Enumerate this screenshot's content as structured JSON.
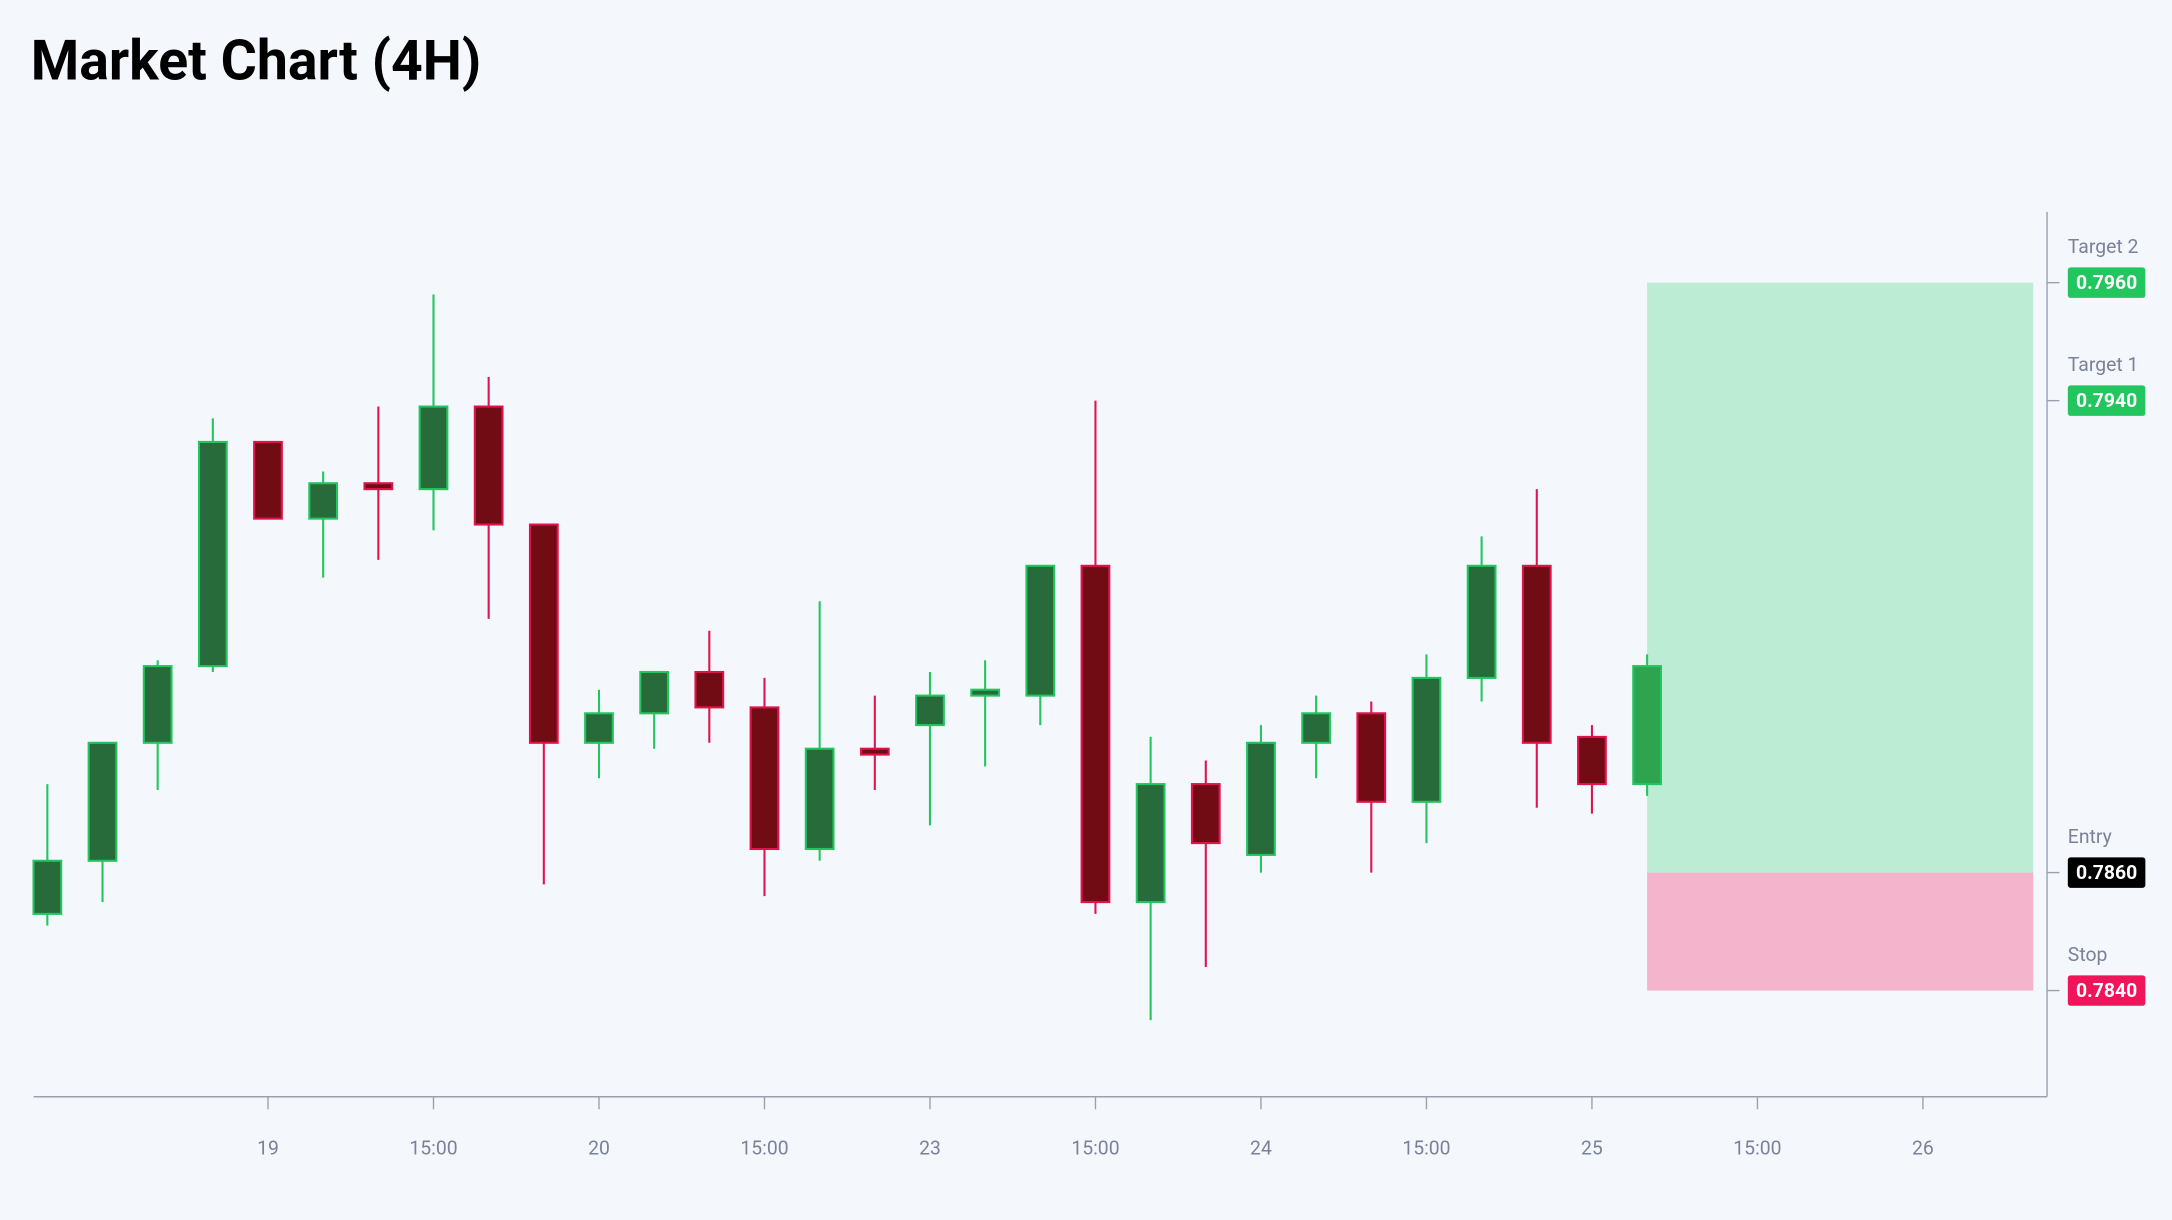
{
  "chart_data": {
    "type": "candlestick",
    "title": "Market Chart (4H)",
    "x": [
      0,
      1,
      2,
      3,
      4,
      5,
      6,
      7,
      8,
      9,
      10,
      11,
      12,
      13,
      14,
      15,
      16,
      17,
      18,
      19,
      20,
      21,
      22,
      23,
      24,
      25,
      26,
      27,
      28,
      29
    ],
    "open": [
      0.7853,
      0.7862,
      0.7882,
      0.7895,
      0.7933,
      0.792,
      0.7926,
      0.7925,
      0.7939,
      0.7919,
      0.7882,
      0.7887,
      0.7894,
      0.7888,
      0.7864,
      0.7881,
      0.7885,
      0.789,
      0.789,
      0.7912,
      0.7855,
      0.7875,
      0.7863,
      0.7882,
      0.7887,
      0.7872,
      0.7893,
      0.7912,
      0.7883,
      0.7875
    ],
    "high": [
      0.7875,
      0.7882,
      0.7896,
      0.7937,
      0.7933,
      0.7928,
      0.7939,
      0.7958,
      0.7944,
      0.7919,
      0.7891,
      0.7894,
      0.7901,
      0.7893,
      0.7906,
      0.789,
      0.7894,
      0.7896,
      0.7912,
      0.794,
      0.7883,
      0.7879,
      0.7885,
      0.789,
      0.7889,
      0.7897,
      0.7917,
      0.7925,
      0.7885,
      0.7897
    ],
    "low": [
      0.7851,
      0.7855,
      0.7874,
      0.7894,
      0.792,
      0.791,
      0.7913,
      0.7918,
      0.7903,
      0.7858,
      0.7876,
      0.7881,
      0.7882,
      0.7856,
      0.7862,
      0.7874,
      0.7868,
      0.7878,
      0.7885,
      0.7853,
      0.7835,
      0.7844,
      0.786,
      0.7876,
      0.786,
      0.7865,
      0.7889,
      0.7871,
      0.787,
      0.7873
    ],
    "close": [
      0.7862,
      0.7882,
      0.7895,
      0.7933,
      0.792,
      0.7926,
      0.7925,
      0.7939,
      0.7919,
      0.7882,
      0.7887,
      0.7894,
      0.7888,
      0.7864,
      0.7881,
      0.788,
      0.789,
      0.7891,
      0.7912,
      0.7855,
      0.7875,
      0.7865,
      0.7882,
      0.7887,
      0.7872,
      0.7893,
      0.7912,
      0.7882,
      0.7875,
      0.7895
    ],
    "up_color": "#276b3a",
    "up_border": "#22c55e",
    "down_color": "#720c14",
    "down_border": "#e0144c",
    "last_color": "#2ea44f",
    "xlim": [
      -0.25,
      36.25
    ],
    "xticks": [
      {
        "value": 4,
        "label": "19"
      },
      {
        "value": 7,
        "label": "15:00"
      },
      {
        "value": 10,
        "label": "20"
      },
      {
        "value": 13,
        "label": "15:00"
      },
      {
        "value": 16,
        "label": "23"
      },
      {
        "value": 19,
        "label": "15:00"
      },
      {
        "value": 22,
        "label": "24"
      },
      {
        "value": 25,
        "label": "15:00"
      },
      {
        "value": 28,
        "label": "25"
      },
      {
        "value": 31,
        "label": "15:00"
      },
      {
        "value": 34,
        "label": "26"
      }
    ],
    "ylim": [
      0.7822,
      0.7972
    ],
    "levels": [
      {
        "name": "Target 2",
        "price": 0.796,
        "price_label": "0.7960",
        "color": "#22c55e"
      },
      {
        "name": "Target 1",
        "price": 0.794,
        "price_label": "0.7940",
        "color": "#22c55e"
      },
      {
        "name": "Entry",
        "price": 0.786,
        "price_label": "0.7860",
        "color": "#000000"
      },
      {
        "name": "Stop",
        "price": 0.784,
        "price_label": "0.7840",
        "color": "#f0145a"
      }
    ],
    "position": {
      "x": [
        29,
        36
      ],
      "profit_color": "#bcecd3",
      "loss_color": "#f4b4cb"
    }
  }
}
